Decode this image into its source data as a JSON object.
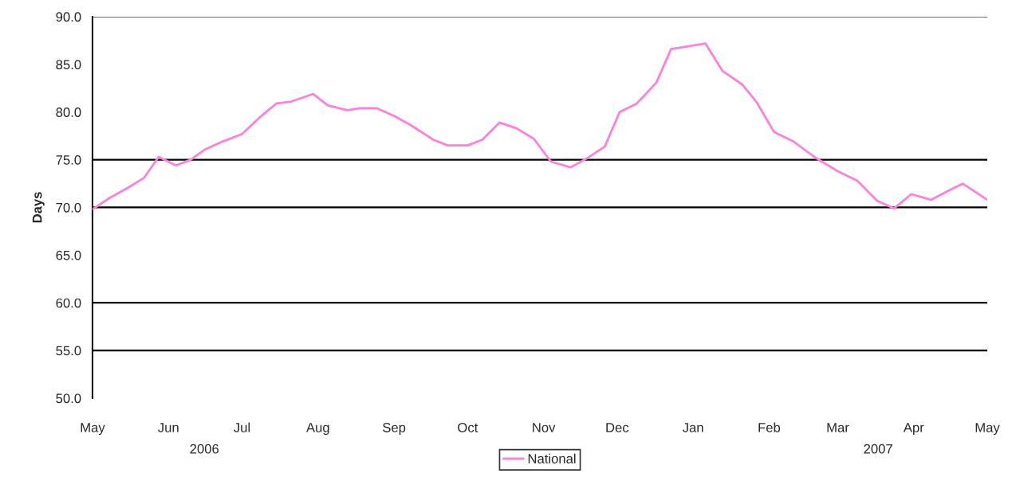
{
  "chart_data": {
    "type": "line",
    "ylabel": "Days",
    "x": [
      "2006-05-01",
      "2006-05-08",
      "2006-05-15",
      "2006-05-22",
      "2006-05-28",
      "2006-06-04",
      "2006-06-10",
      "2006-06-16",
      "2006-06-23",
      "2006-07-01",
      "2006-07-08",
      "2006-07-15",
      "2006-07-21",
      "2006-07-30",
      "2006-08-05",
      "2006-08-13",
      "2006-08-18",
      "2006-08-25",
      "2006-09-01",
      "2006-09-08",
      "2006-09-17",
      "2006-09-23",
      "2006-10-01",
      "2006-10-07",
      "2006-10-14",
      "2006-10-21",
      "2006-10-28",
      "2006-11-04",
      "2006-11-12",
      "2006-11-19",
      "2006-11-26",
      "2006-12-02",
      "2006-12-09",
      "2006-12-17",
      "2006-12-23",
      "2006-12-30",
      "2007-01-06",
      "2007-01-13",
      "2007-01-21",
      "2007-01-27",
      "2007-02-03",
      "2007-02-11",
      "2007-02-20",
      "2007-03-01",
      "2007-03-09",
      "2007-03-17",
      "2007-03-24",
      "2007-03-31",
      "2007-04-08",
      "2007-04-14",
      "2007-04-21",
      "2007-05-01"
    ],
    "series": [
      {
        "name": "National",
        "color": "#ff80d8",
        "values": [
          69.8,
          71.0,
          72.0,
          73.1,
          75.3,
          74.4,
          75.0,
          76.1,
          76.9,
          77.7,
          79.4,
          80.9,
          81.1,
          81.9,
          80.7,
          80.2,
          80.4,
          80.4,
          79.6,
          78.6,
          77.1,
          76.5,
          76.5,
          77.1,
          78.9,
          78.3,
          77.2,
          74.8,
          74.2,
          75.2,
          76.4,
          80.0,
          80.9,
          83.1,
          86.6,
          86.9,
          87.2,
          84.3,
          82.9,
          81.0,
          77.9,
          76.9,
          75.2,
          73.8,
          72.8,
          70.7,
          69.9,
          71.4,
          70.8,
          71.6,
          72.5,
          70.8
        ]
      }
    ],
    "xlim": [
      "2006-05-01",
      "2007-05-01"
    ],
    "xticks": [
      {
        "value": "2006-05-01",
        "label": "May"
      },
      {
        "value": "2006-06-01",
        "label": "Jun"
      },
      {
        "value": "2006-07-01",
        "label": "Jul"
      },
      {
        "value": "2006-08-01",
        "label": "Aug"
      },
      {
        "value": "2006-09-01",
        "label": "Sep"
      },
      {
        "value": "2006-10-01",
        "label": "Oct"
      },
      {
        "value": "2006-11-01",
        "label": "Nov"
      },
      {
        "value": "2006-12-01",
        "label": "Dec"
      },
      {
        "value": "2007-01-01",
        "label": "Jan"
      },
      {
        "value": "2007-02-01",
        "label": "Feb"
      },
      {
        "value": "2007-03-01",
        "label": "Mar"
      },
      {
        "value": "2007-04-01",
        "label": "Apr"
      },
      {
        "value": "2007-05-01",
        "label": "May"
      }
    ],
    "ylim": [
      50,
      90
    ],
    "yticks": [
      {
        "value": 50,
        "label": "50.0"
      },
      {
        "value": 55,
        "label": "55.0"
      },
      {
        "value": 60,
        "label": "60.0"
      },
      {
        "value": 65,
        "label": "65.0"
      },
      {
        "value": 70,
        "label": "70.0"
      },
      {
        "value": 75,
        "label": "75.0"
      },
      {
        "value": 80,
        "label": "80.0"
      },
      {
        "value": 85,
        "label": "85.0"
      },
      {
        "value": 90,
        "label": "90.0"
      }
    ],
    "ref_lines": [
      {
        "axis": "y",
        "value": 55,
        "color": "#000000"
      },
      {
        "axis": "y",
        "value": 60,
        "color": "#000000"
      },
      {
        "axis": "y",
        "value": 70,
        "color": "#000000"
      },
      {
        "axis": "y",
        "value": 75,
        "color": "#000000"
      },
      {
        "axis": "y",
        "value": 90,
        "color": "#2e8b6e"
      }
    ],
    "annotations": [
      "2006",
      "2007"
    ],
    "grid": false,
    "legend": "bottom"
  }
}
